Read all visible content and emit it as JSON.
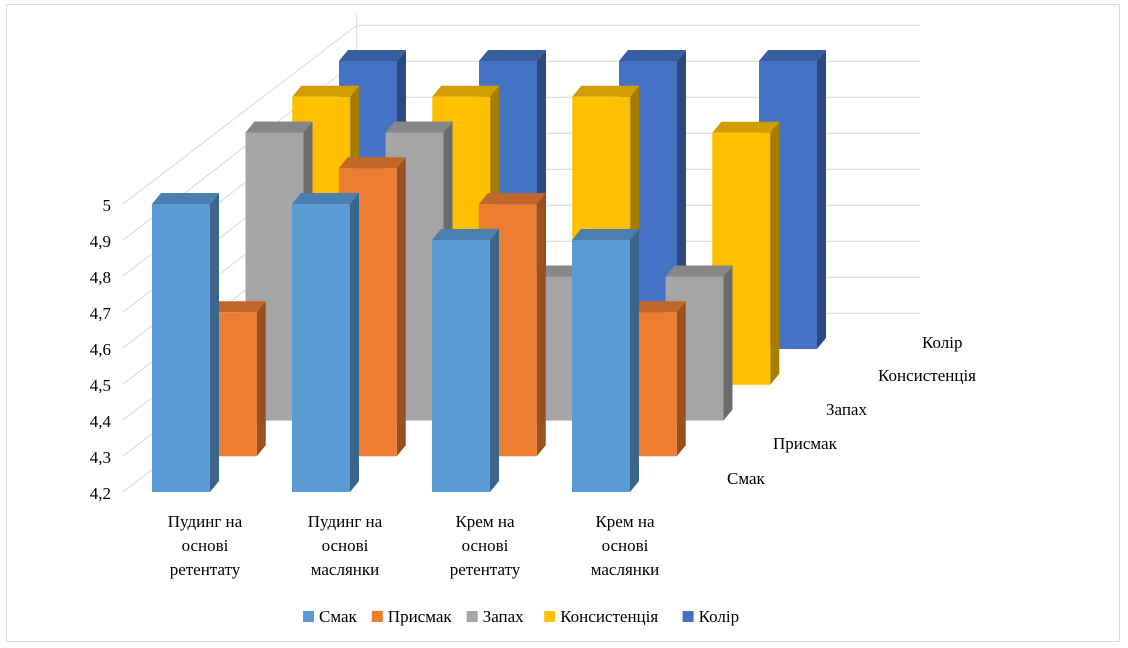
{
  "chart_data": {
    "type": "bar",
    "subtype": "3d-column",
    "categories": [
      [
        "Пудинг на",
        "основі",
        "ретентату"
      ],
      [
        "Пудинг на",
        "основі",
        "маслянки"
      ],
      [
        "Крем на",
        "основі",
        "ретентату"
      ],
      [
        "Крем на",
        "основі",
        "маслянки"
      ]
    ],
    "series": [
      {
        "name": "Смак",
        "color": "#5b9bd5",
        "values": [
          5.0,
          5.0,
          4.9,
          4.9
        ]
      },
      {
        "name": "Присмак",
        "color": "#ed7d31",
        "values": [
          4.6,
          5.0,
          4.9,
          4.6
        ]
      },
      {
        "name": "Запах",
        "color": "#a5a5a5",
        "values": [
          5.0,
          5.0,
          4.6,
          4.6
        ]
      },
      {
        "name": "Консистенція",
        "color": "#ffc000",
        "values": [
          5.0,
          5.0,
          5.0,
          4.9
        ]
      },
      {
        "name": "Колір",
        "color": "#4472c4",
        "values": [
          5.0,
          5.0,
          5.0,
          5.0
        ]
      }
    ],
    "y_ticks": [
      "4,2",
      "4,3",
      "4,4",
      "4,5",
      "4,6",
      "4,7",
      "4,8",
      "4,9",
      "5"
    ],
    "ylim": [
      4.2,
      5.0
    ],
    "grid": true,
    "legend_position": "bottom"
  }
}
